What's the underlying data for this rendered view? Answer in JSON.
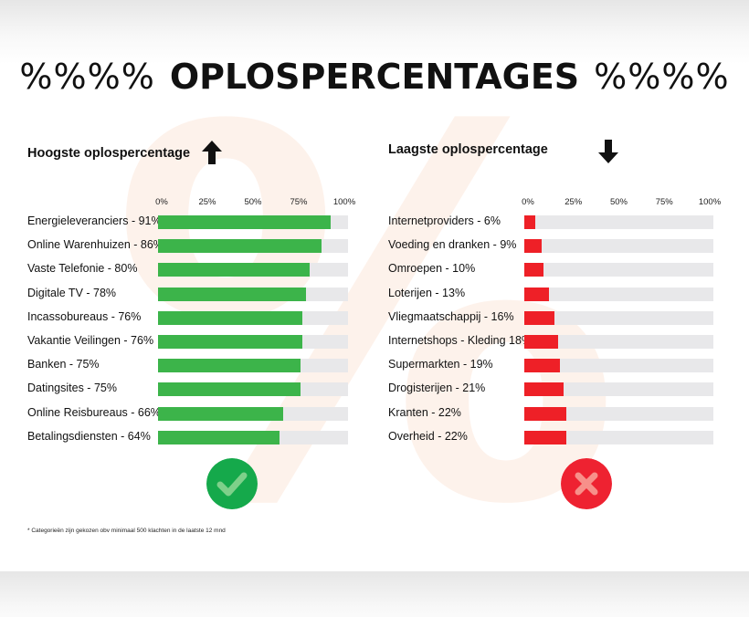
{
  "watermark": "%",
  "title": {
    "prefix": "%%%%",
    "main": "OPLOSPERCENTAGES",
    "suffix": "%%%%"
  },
  "colors": {
    "positive": "#3cb44a",
    "negative": "#ee2027",
    "track": "#e8e8ea",
    "badge_positive": "#15a94b",
    "badge_negative": "#ee2231"
  },
  "icons": {
    "left_arrow": "arrow-up-icon",
    "right_arrow": "arrow-down-icon",
    "left_badge": "check-icon",
    "right_badge": "cross-icon"
  },
  "axis_ticks": [
    "0%",
    "25%",
    "50%",
    "75%",
    "100%"
  ],
  "chart_data": [
    {
      "type": "bar",
      "title": "Hoogste oplospercentage",
      "xlim": [
        0,
        100
      ],
      "categories": [
        "Energieleveranciers",
        "Online Warenhuizen",
        "Vaste Telefonie",
        "Digitale TV",
        "Incassobureaus",
        "Vakantie Veilingen",
        "Banken",
        "Datingsites",
        "Online Reisbureaus",
        "Betalingsdiensten"
      ],
      "labels": [
        "Energieleveranciers - 91%",
        "Online Warenhuizen - 86%",
        "Vaste Telefonie - 80%",
        "Digitale TV - 78%",
        "Incassobureaus - 76%",
        "Vakantie Veilingen - 76%",
        "Banken - 75%",
        "Datingsites - 75%",
        "Online Reisbureaus - 66%",
        "Betalingsdiensten - 64%"
      ],
      "values": [
        91,
        86,
        80,
        78,
        76,
        76,
        75,
        75,
        66,
        64
      ]
    },
    {
      "type": "bar",
      "title": "Laagste oplospercentage",
      "xlim": [
        0,
        100
      ],
      "categories": [
        "Internetproviders",
        "Voeding en dranken",
        "Omroepen",
        "Loterijen",
        "Vliegmaatschappij",
        "Internetshops - Kleding",
        "Supermarkten",
        "Drogisterijen",
        "Kranten",
        "Overheid"
      ],
      "labels": [
        "Internetproviders - 6%",
        "Voeding en dranken - 9%",
        "Omroepen - 10%",
        "Loterijen - 13%",
        "Vliegmaatschappij - 16%",
        "Internetshops - Kleding 18%",
        "Supermarkten - 19%",
        "Drogisterijen - 21%",
        "Kranten - 22%",
        "Overheid - 22%"
      ],
      "values": [
        6,
        9,
        10,
        13,
        16,
        18,
        19,
        21,
        22,
        22
      ]
    }
  ],
  "footnote": "* Categorieën zijn gekozen obv minimaal 500 klachten in de laatste 12 mnd"
}
